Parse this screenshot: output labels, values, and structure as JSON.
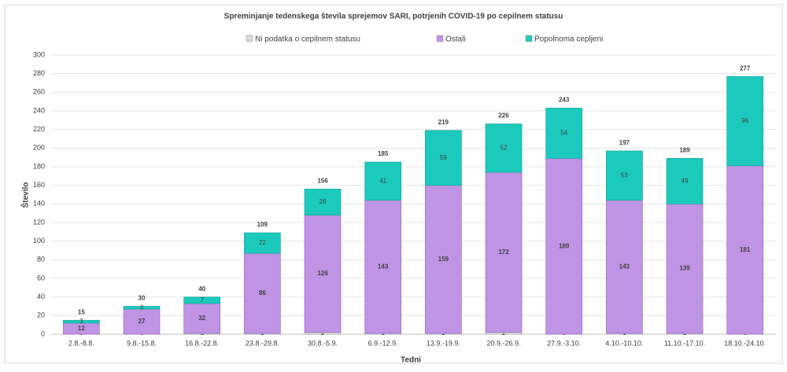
{
  "chart_data": {
    "type": "stacked_bar",
    "title": "Spreminjanje tedenskega števila sprejemov SARI, potrjenih COVID-19 po cepilnem statusu",
    "x_label": "Tedni",
    "y_label": "Število",
    "categories": [
      "2.8.-8.8.",
      "9.8.-15.8.",
      "16.8.-22.8.",
      "23.8.-29.8.",
      "30.8.-5.9.",
      "6.9.-12.9.",
      "13.9.-19.9.",
      "20.9.-26.9.",
      "27.9.-3.10.",
      "4.10.-10.10.",
      "11.10.-17.10.",
      "18.10.-24.10."
    ],
    "series": [
      {
        "name": "Ni podatka o cepilnem statusu",
        "color": "#d9d9d9",
        "values": [
          0,
          0,
          1,
          1,
          2,
          1,
          1,
          2,
          0,
          1,
          1,
          0
        ]
      },
      {
        "name": "Ostali",
        "color": "#bf94e4",
        "values": [
          12,
          27,
          32,
          86,
          126,
          143,
          159,
          172,
          189,
          143,
          139,
          181
        ]
      },
      {
        "name": "Popolnoma cepljeni",
        "color": "#1ccabd",
        "values": [
          3,
          3,
          7,
          22,
          28,
          41,
          59,
          52,
          54,
          53,
          49,
          96
        ]
      }
    ],
    "totals": [
      15,
      30,
      40,
      109,
      156,
      185,
      219,
      226,
      243,
      197,
      189,
      277
    ],
    "ylim": [
      0,
      300
    ],
    "yticks": [
      0,
      20,
      40,
      60,
      80,
      100,
      120,
      140,
      160,
      180,
      200,
      220,
      240,
      260,
      280,
      300
    ],
    "grid": true,
    "legend": "top"
  }
}
